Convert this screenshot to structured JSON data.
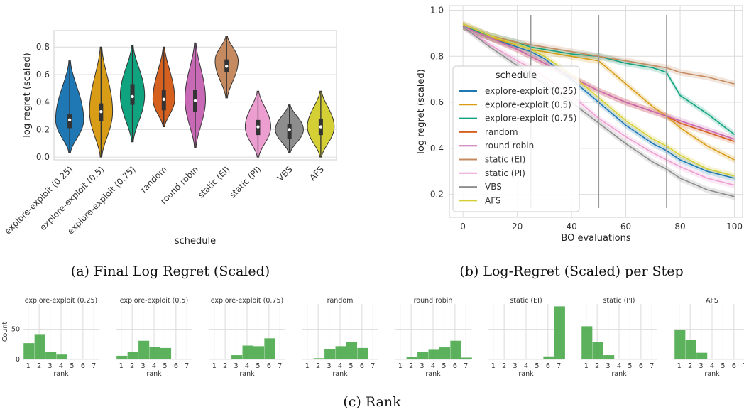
{
  "captions": {
    "a": "(a) Final Log Regret (Scaled)",
    "b": "(b) Log-Regret (Scaled) per Step",
    "c": "(c) Rank"
  },
  "chart_data": [
    {
      "type": "violin",
      "xlabel": "schedule",
      "ylabel": "log regret (scaled)",
      "ylim": [
        -0.02,
        0.92
      ],
      "yticks": [
        "0.0",
        "0.2",
        "0.4",
        "0.6",
        "0.8"
      ],
      "grid": "horizontal",
      "categories": [
        "explore-exploit (0.25)",
        "explore-exploit (0.5)",
        "explore-exploit (0.75)",
        "random",
        "round robin",
        "static (EI)",
        "static (PI)",
        "VBS",
        "AFS"
      ],
      "colors": [
        "#1f77b4",
        "#d89c17",
        "#10a37f",
        "#d6611e",
        "#c869b5",
        "#c58a5f",
        "#ed9ed0",
        "#8d8d8d",
        "#d5cf36"
      ],
      "min": [
        0.03,
        0.0,
        0.11,
        0.22,
        0.07,
        0.43,
        0.0,
        0.03,
        0.0
      ],
      "max": [
        0.7,
        0.8,
        0.81,
        0.8,
        0.83,
        0.88,
        0.48,
        0.38,
        0.48
      ],
      "q1": [
        0.21,
        0.26,
        0.38,
        0.34,
        0.33,
        0.62,
        0.16,
        0.13,
        0.16
      ],
      "median": [
        0.27,
        0.33,
        0.44,
        0.42,
        0.41,
        0.66,
        0.22,
        0.2,
        0.22
      ],
      "q3": [
        0.31,
        0.39,
        0.53,
        0.49,
        0.49,
        0.71,
        0.27,
        0.24,
        0.28
      ],
      "mode": [
        0.27,
        0.33,
        0.45,
        0.42,
        0.42,
        0.7,
        0.22,
        0.2,
        0.22
      ],
      "max_width": [
        0.42,
        0.34,
        0.36,
        0.32,
        0.3,
        0.34,
        0.38,
        0.42,
        0.4
      ]
    },
    {
      "type": "line",
      "xlabel": "BO evaluations",
      "ylabel": "log regret (scaled)",
      "xlim": [
        -5,
        103
      ],
      "ylim": [
        0.1,
        1.02
      ],
      "xticks": [
        0,
        20,
        40,
        60,
        80,
        100
      ],
      "yticks": [
        "0.2",
        "0.4",
        "0.6",
        "0.8",
        "1.0"
      ],
      "grid": "both",
      "legend": {
        "title": "schedule",
        "placement": "center-left"
      },
      "vlines": [
        25,
        50,
        75
      ],
      "x": [
        0,
        10,
        20,
        25,
        30,
        40,
        50,
        60,
        70,
        75,
        80,
        90,
        100
      ],
      "series": [
        {
          "name": "explore-exploit (0.25)",
          "color": "#1f77b4",
          "values": [
            0.93,
            0.88,
            0.84,
            0.82,
            0.79,
            0.7,
            0.6,
            0.5,
            0.42,
            0.39,
            0.35,
            0.3,
            0.27
          ]
        },
        {
          "name": "explore-exploit (0.5)",
          "color": "#d89c17",
          "values": [
            0.93,
            0.88,
            0.85,
            0.83,
            0.82,
            0.8,
            0.78,
            0.68,
            0.58,
            0.54,
            0.49,
            0.41,
            0.35
          ]
        },
        {
          "name": "explore-exploit (0.75)",
          "color": "#10a37f",
          "values": [
            0.93,
            0.89,
            0.86,
            0.84,
            0.83,
            0.81,
            0.8,
            0.77,
            0.75,
            0.73,
            0.63,
            0.55,
            0.46
          ]
        },
        {
          "name": "random",
          "color": "#d6611e",
          "values": [
            0.93,
            0.88,
            0.83,
            0.8,
            0.77,
            0.71,
            0.65,
            0.6,
            0.56,
            0.54,
            0.51,
            0.47,
            0.43
          ]
        },
        {
          "name": "round robin",
          "color": "#c869b5",
          "values": [
            0.93,
            0.88,
            0.83,
            0.8,
            0.77,
            0.71,
            0.65,
            0.6,
            0.56,
            0.54,
            0.52,
            0.48,
            0.44
          ]
        },
        {
          "name": "static (EI)",
          "color": "#c58a5f",
          "values": [
            0.94,
            0.89,
            0.86,
            0.85,
            0.84,
            0.82,
            0.8,
            0.78,
            0.76,
            0.75,
            0.73,
            0.71,
            0.68
          ]
        },
        {
          "name": "static (PI)",
          "color": "#ed9ed0",
          "values": [
            0.93,
            0.85,
            0.78,
            0.75,
            0.71,
            0.63,
            0.53,
            0.45,
            0.38,
            0.35,
            0.32,
            0.27,
            0.24
          ]
        },
        {
          "name": "VBS",
          "color": "#8d8d8d",
          "values": [
            0.93,
            0.84,
            0.76,
            0.72,
            0.68,
            0.6,
            0.51,
            0.42,
            0.34,
            0.31,
            0.27,
            0.22,
            0.19
          ]
        },
        {
          "name": "AFS",
          "color": "#d5cf36",
          "values": [
            0.94,
            0.89,
            0.85,
            0.83,
            0.8,
            0.72,
            0.62,
            0.52,
            0.44,
            0.41,
            0.37,
            0.31,
            0.28
          ]
        }
      ]
    },
    {
      "type": "bar",
      "xlabel": "rank",
      "ylabel": "Count",
      "ylim": [
        0,
        92
      ],
      "yticks": [
        "0",
        "50"
      ],
      "categories": [
        "1",
        "2",
        "3",
        "4",
        "5",
        "6",
        "7"
      ],
      "bar_color": "#4aaa4a",
      "panels": [
        {
          "title": "explore-exploit (0.25)",
          "values": [
            27,
            42,
            12,
            8,
            0,
            0,
            0
          ]
        },
        {
          "title": "explore-exploit (0.5)",
          "values": [
            6,
            12,
            31,
            21,
            19,
            0,
            0
          ]
        },
        {
          "title": "explore-exploit (0.75)",
          "values": [
            0,
            0,
            7,
            23,
            22,
            35,
            0
          ]
        },
        {
          "title": "random",
          "values": [
            0,
            2,
            17,
            22,
            29,
            19,
            0
          ]
        },
        {
          "title": "round robin",
          "values": [
            1,
            4,
            13,
            16,
            20,
            31,
            3
          ]
        },
        {
          "title": "static (EI)",
          "values": [
            0,
            0,
            0,
            0,
            0,
            5,
            88
          ]
        },
        {
          "title": "static (PI)",
          "values": [
            55,
            29,
            7,
            0,
            0,
            0,
            0
          ]
        },
        {
          "title": "AFS",
          "values": [
            49,
            32,
            11,
            0,
            1,
            0,
            0
          ]
        }
      ]
    }
  ]
}
